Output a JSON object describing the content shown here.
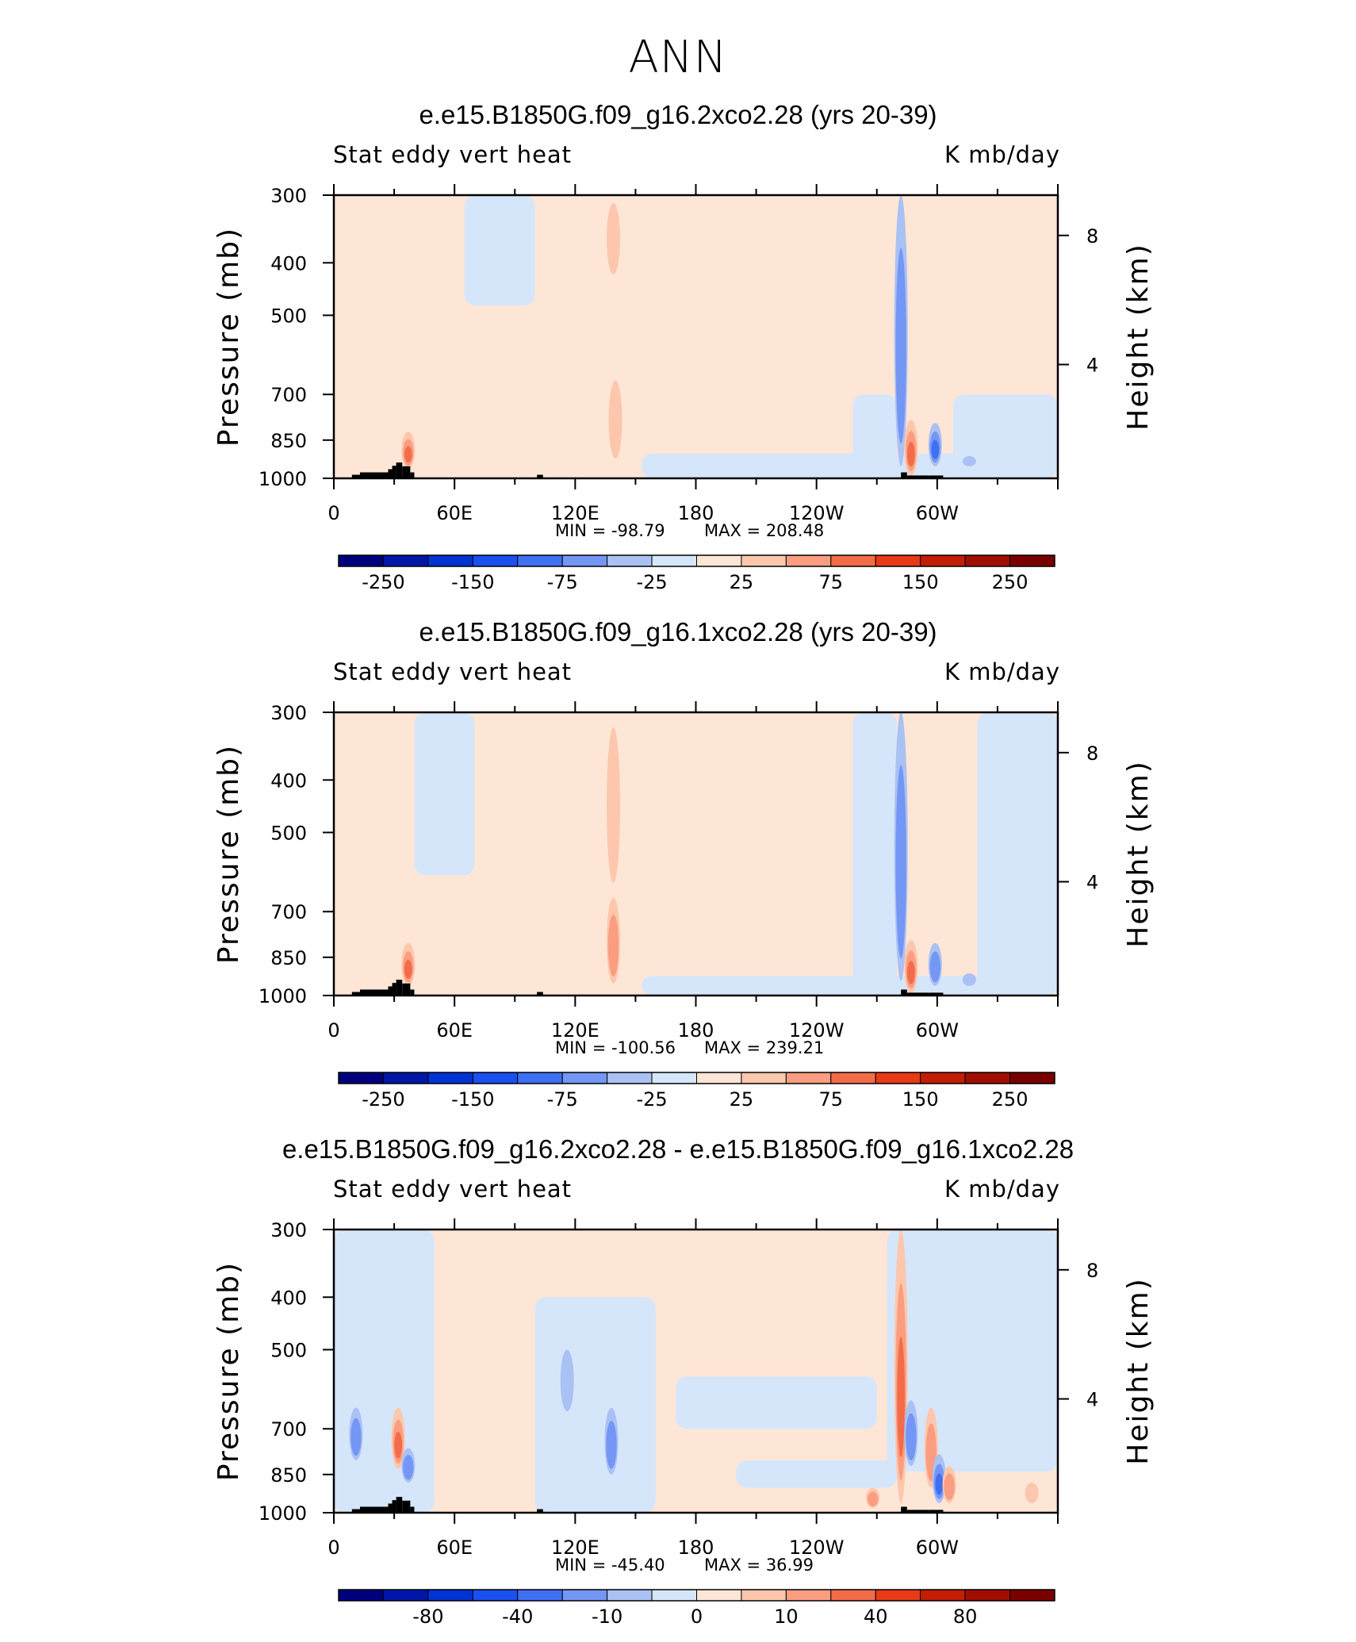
{
  "page": {
    "title": "ANN"
  },
  "colors": {
    "levels_full": [
      "#00007e",
      "#0016a8",
      "#0033d4",
      "#1a4ff0",
      "#3f70f4",
      "#7496f4",
      "#aac1f4",
      "#d6e6fa",
      "#fde6d6",
      "#fdc7ad",
      "#fb9d80",
      "#f36c4a",
      "#e83a16",
      "#c31d06",
      "#a10e00",
      "#7a0000"
    ],
    "axis": "#000000",
    "topo": "#000000"
  },
  "chart_data": [
    {
      "type": "heatmap",
      "title": "e.e15.B1850G.f09_g16.2xco2.28 (yrs 20-39)",
      "variable": "Stat eddy vert heat",
      "units": "K mb/day",
      "xlabel": "",
      "ylabel": "Pressure (mb)",
      "y2label": "Height (km)",
      "x_ticks": [
        "0",
        "60E",
        "120E",
        "180",
        "120W",
        "60W"
      ],
      "x_tick_values": [
        0,
        60,
        120,
        180,
        240,
        300
      ],
      "xlim": [
        0,
        360
      ],
      "y_ticks": [
        "300",
        "400",
        "500",
        "700",
        "850",
        "1000"
      ],
      "y_tick_values": [
        300,
        400,
        500,
        700,
        850,
        1000
      ],
      "ylim": [
        1000,
        300
      ],
      "y2_ticks": [
        "8",
        "4"
      ],
      "y2_tick_values": [
        8,
        4
      ],
      "min_text": "MIN = -98.79",
      "max_text": "MAX = 208.48",
      "min": -98.79,
      "max": 208.48,
      "colorbar_labels": [
        "-250",
        "-150",
        "-75",
        "-25",
        "25",
        "75",
        "150",
        "250"
      ],
      "background_sign": "positive",
      "blobs": [
        {
          "lon": 37,
          "p_top": 820,
          "p_bot": 960,
          "sign": 1,
          "lev": 3
        },
        {
          "lon": 140,
          "p_top": 660,
          "p_bot": 920,
          "sign": 1,
          "lev": 1
        },
        {
          "lon": 139,
          "p_top": 310,
          "p_bot": 420,
          "sign": 1,
          "lev": 1
        },
        {
          "lon": 282,
          "p_top": 300,
          "p_bot": 950,
          "sign": -1,
          "lev": 2
        },
        {
          "lon": 287,
          "p_top": 780,
          "p_bot": 990,
          "sign": 1,
          "lev": 3
        },
        {
          "lon": 299,
          "p_top": 790,
          "p_bot": 950,
          "sign": -1,
          "lev": 3
        },
        {
          "lon": 316,
          "p_top": 910,
          "p_bot": 950,
          "sign": -1,
          "lev": 1
        }
      ],
      "neg_bands": [
        {
          "lon0": 65,
          "lon1": 100,
          "p_top": 300,
          "p_bot": 480
        },
        {
          "lon0": 153,
          "lon1": 360,
          "p_top": 900,
          "p_bot": 1000
        },
        {
          "lon0": 258,
          "lon1": 280,
          "p_top": 700,
          "p_bot": 1000
        },
        {
          "lon0": 308,
          "lon1": 360,
          "p_top": 700,
          "p_bot": 1000
        }
      ]
    },
    {
      "type": "heatmap",
      "title": "e.e15.B1850G.f09_g16.1xco2.28 (yrs 20-39)",
      "variable": "Stat eddy vert heat",
      "units": "K mb/day",
      "xlabel": "",
      "ylabel": "Pressure (mb)",
      "y2label": "Height (km)",
      "x_ticks": [
        "0",
        "60E",
        "120E",
        "180",
        "120W",
        "60W"
      ],
      "x_tick_values": [
        0,
        60,
        120,
        180,
        240,
        300
      ],
      "xlim": [
        0,
        360
      ],
      "y_ticks": [
        "300",
        "400",
        "500",
        "700",
        "850",
        "1000"
      ],
      "y_tick_values": [
        300,
        400,
        500,
        700,
        850,
        1000
      ],
      "ylim": [
        1000,
        300
      ],
      "y2_ticks": [
        "8",
        "4"
      ],
      "y2_tick_values": [
        8,
        4
      ],
      "min_text": "MIN = -100.56",
      "max_text": "MAX = 239.21",
      "min": -100.56,
      "max": 239.21,
      "colorbar_labels": [
        "-250",
        "-150",
        "-75",
        "-25",
        "25",
        "75",
        "150",
        "250"
      ],
      "background_sign": "positive",
      "blobs": [
        {
          "lon": 37,
          "p_top": 800,
          "p_bot": 960,
          "sign": 1,
          "lev": 3
        },
        {
          "lon": 139,
          "p_top": 660,
          "p_bot": 950,
          "sign": 1,
          "lev": 2
        },
        {
          "lon": 139,
          "p_top": 320,
          "p_bot": 620,
          "sign": 1,
          "lev": 1
        },
        {
          "lon": 282,
          "p_top": 300,
          "p_bot": 940,
          "sign": -1,
          "lev": 2
        },
        {
          "lon": 287,
          "p_top": 790,
          "p_bot": 990,
          "sign": 1,
          "lev": 3
        },
        {
          "lon": 299,
          "p_top": 800,
          "p_bot": 960,
          "sign": -1,
          "lev": 2
        },
        {
          "lon": 316,
          "p_top": 910,
          "p_bot": 960,
          "sign": -1,
          "lev": 1
        }
      ],
      "neg_bands": [
        {
          "lon0": 40,
          "lon1": 70,
          "p_top": 300,
          "p_bot": 600
        },
        {
          "lon0": 153,
          "lon1": 360,
          "p_top": 920,
          "p_bot": 1000
        },
        {
          "lon0": 258,
          "lon1": 280,
          "p_top": 300,
          "p_bot": 1000
        },
        {
          "lon0": 320,
          "lon1": 360,
          "p_top": 300,
          "p_bot": 1000
        }
      ]
    },
    {
      "type": "heatmap",
      "title": "e.e15.B1850G.f09_g16.2xco2.28 - e.e15.B1850G.f09_g16.1xco2.28",
      "variable": "Stat eddy vert heat",
      "units": "K mb/day",
      "xlabel": "",
      "ylabel": "Pressure (mb)",
      "y2label": "Height (km)",
      "x_ticks": [
        "0",
        "60E",
        "120E",
        "180",
        "120W",
        "60W"
      ],
      "x_tick_values": [
        0,
        60,
        120,
        180,
        240,
        300
      ],
      "xlim": [
        0,
        360
      ],
      "y_ticks": [
        "300",
        "400",
        "500",
        "700",
        "850",
        "1000"
      ],
      "y_tick_values": [
        300,
        400,
        500,
        700,
        850,
        1000
      ],
      "ylim": [
        1000,
        300
      ],
      "y2_ticks": [
        "8",
        "4"
      ],
      "y2_tick_values": [
        8,
        4
      ],
      "min_text": "MIN = -45.40",
      "max_text": "MAX = 36.99",
      "min": -45.4,
      "max": 36.99,
      "colorbar_labels": [
        "-80",
        "-40",
        "-10",
        "0",
        "10",
        "40",
        "80"
      ],
      "background_sign": "positive",
      "blobs": [
        {
          "lon": 11,
          "p_top": 640,
          "p_bot": 800,
          "sign": -1,
          "lev": 2
        },
        {
          "lon": 32,
          "p_top": 640,
          "p_bot": 830,
          "sign": 1,
          "lev": 3
        },
        {
          "lon": 37,
          "p_top": 760,
          "p_bot": 880,
          "sign": -1,
          "lev": 2
        },
        {
          "lon": 138,
          "p_top": 640,
          "p_bot": 850,
          "sign": -1,
          "lev": 2
        },
        {
          "lon": 116,
          "p_top": 500,
          "p_bot": 650,
          "sign": -1,
          "lev": 1
        },
        {
          "lon": 282,
          "p_top": 300,
          "p_bot": 960,
          "sign": 1,
          "lev": 3
        },
        {
          "lon": 287,
          "p_top": 620,
          "p_bot": 820,
          "sign": -1,
          "lev": 2
        },
        {
          "lon": 297,
          "p_top": 640,
          "p_bot": 900,
          "sign": 1,
          "lev": 2
        },
        {
          "lon": 301,
          "p_top": 780,
          "p_bot": 960,
          "sign": -1,
          "lev": 3
        },
        {
          "lon": 306,
          "p_top": 820,
          "p_bot": 960,
          "sign": 1,
          "lev": 2
        },
        {
          "lon": 268,
          "p_top": 900,
          "p_bot": 980,
          "sign": 1,
          "lev": 2
        },
        {
          "lon": 347,
          "p_top": 880,
          "p_bot": 960,
          "sign": 1,
          "lev": 1
        }
      ],
      "neg_bands": [
        {
          "lon0": 0,
          "lon1": 50,
          "p_top": 300,
          "p_bot": 1000
        },
        {
          "lon0": 100,
          "lon1": 160,
          "p_top": 400,
          "p_bot": 1000
        },
        {
          "lon0": 170,
          "lon1": 270,
          "p_top": 560,
          "p_bot": 700
        },
        {
          "lon0": 200,
          "lon1": 280,
          "p_top": 800,
          "p_bot": 900
        },
        {
          "lon0": 275,
          "lon1": 360,
          "p_top": 300,
          "p_bot": 840
        }
      ]
    }
  ]
}
